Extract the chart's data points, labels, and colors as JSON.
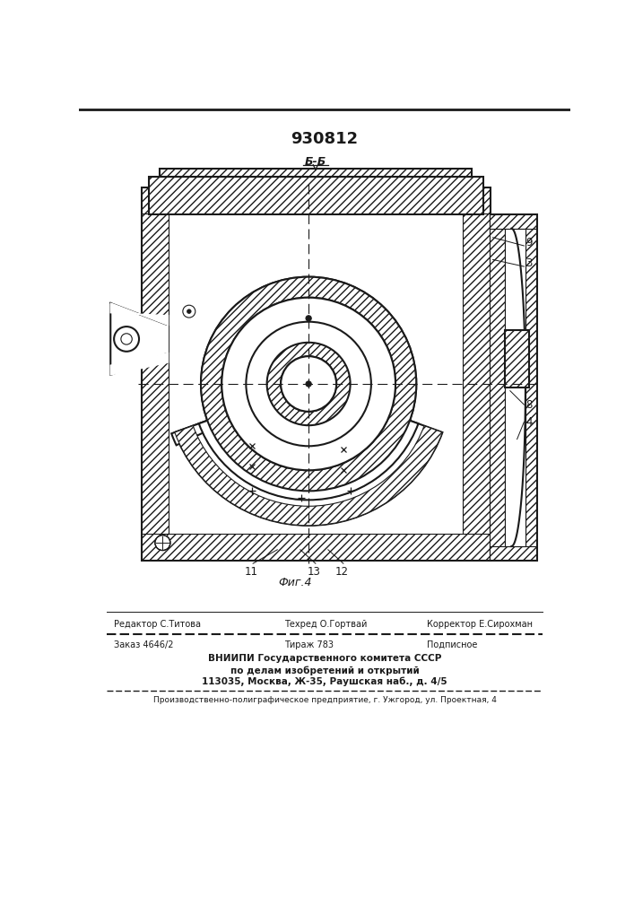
{
  "title_number": "930812",
  "fig_label": "Фиг.4",
  "section_label": "Б-Б",
  "line_color": "#1a1a1a",
  "editor_text": "Редактор С.Титова",
  "techred_text": "Техред О.Гортвай",
  "corrector_text": "Корректор Е.Сирохман",
  "order_text": "Заказ 4646/2",
  "tirazh_text": "Тираж 783",
  "podpisnoe_text": "Подписное",
  "org_line1": "ВНИИПИ Государственного комитета СССР",
  "org_line2": "по делам изобретений и открытий",
  "org_line3": "113035, Москва, Ж-35, Раушская наб., д. 4/5",
  "print_line": "Производственно-полиграфическое предприятие, г. Ужгород, ул. Проектная, 4"
}
